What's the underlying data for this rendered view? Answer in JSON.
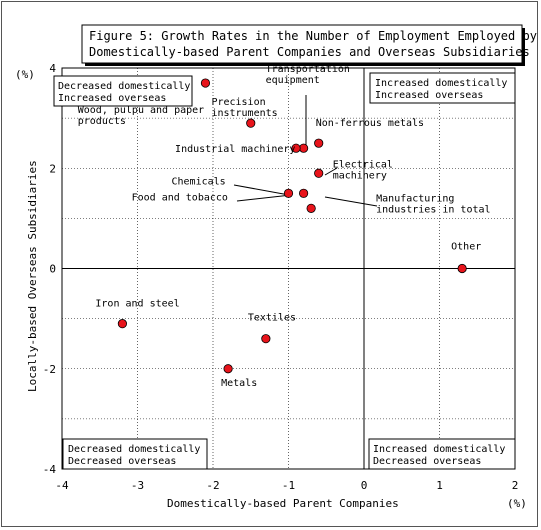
{
  "chart_data": {
    "type": "scatter",
    "title_lines": [
      "Figure 5: Growth Rates in the Number of Employment Employed by",
      "Domestically-based Parent Companies and Overseas Subsidiaries"
    ],
    "xlabel": "Domestically-based Parent Companies",
    "ylabel": "Locally-based Overseas Subsidiaries",
    "x_unit": "(%)",
    "y_unit": "(%)",
    "xlim": [
      -4,
      2
    ],
    "ylim": [
      -4,
      4
    ],
    "x_ticks": [
      -4,
      -3,
      -2,
      -1,
      0,
      1,
      2
    ],
    "y_ticks": [
      -4,
      -2,
      0,
      2,
      4
    ],
    "grid": true,
    "marker_color": "#e8141b",
    "quadrant_labels": {
      "top_left": [
        "Decreased domestically",
        "Increased overseas"
      ],
      "top_right": [
        "Increased domestically",
        "Increased overseas"
      ],
      "bottom_left": [
        "Decreased domestically",
        "Decreased overseas"
      ],
      "bottom_right": [
        "Increased domestically",
        "Decreased overseas"
      ]
    },
    "points": [
      {
        "label": [
          "Precision",
          "instruments"
        ],
        "x": -2.1,
        "y": 3.7
      },
      {
        "label": [
          "Wood, pulpu and paper",
          "products"
        ],
        "x": -1.5,
        "y": 2.9
      },
      {
        "label": [
          "Transportation",
          "equipment"
        ],
        "x": -0.8,
        "y": 2.4
      },
      {
        "label": [
          "Industrial machinery"
        ],
        "x": -0.9,
        "y": 2.4
      },
      {
        "label": [
          "Non-ferrous metals"
        ],
        "x": -0.6,
        "y": 2.5
      },
      {
        "label": [
          "Electrical",
          "machinery"
        ],
        "x": -0.6,
        "y": 1.9
      },
      {
        "label": [
          "Chemicals"
        ],
        "x": -1.0,
        "y": 1.5
      },
      {
        "label": [
          "Food and tobacco"
        ],
        "x": -0.8,
        "y": 1.5
      },
      {
        "label": [
          "Manufacturing",
          "industries in total"
        ],
        "x": -0.7,
        "y": 1.2
      },
      {
        "label": [
          "Other"
        ],
        "x": 1.3,
        "y": 0.0
      },
      {
        "label": [
          "Iron and steel"
        ],
        "x": -3.2,
        "y": -1.1
      },
      {
        "label": [
          "Textiles"
        ],
        "x": -1.3,
        "y": -1.4
      },
      {
        "label": [
          "Metals"
        ],
        "x": -1.8,
        "y": -2.0
      }
    ]
  }
}
